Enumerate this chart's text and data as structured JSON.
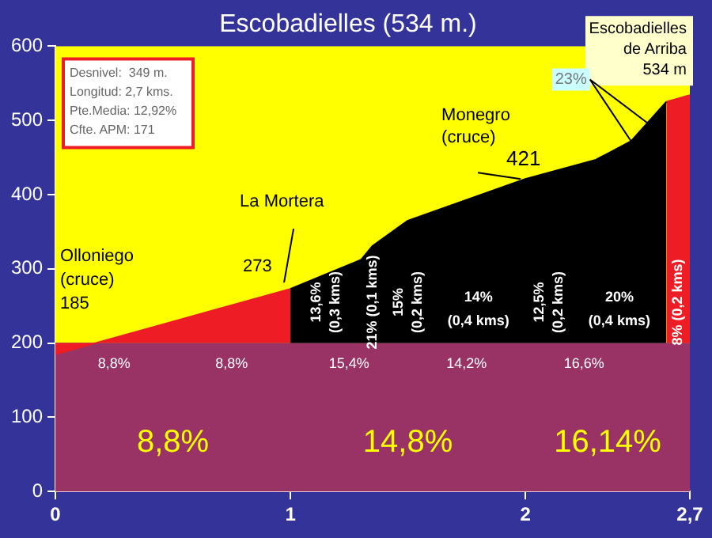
{
  "chart_data": {
    "type": "area",
    "title": "Escobadielles (534 m.)",
    "series": [
      {
        "color": "#ee1c24",
        "x": [
          0,
          0.5,
          1
        ],
        "values": [
          185,
          229,
          273
        ]
      },
      {
        "color": "#000000",
        "x": [
          1,
          1.3,
          1.35,
          1.5,
          2,
          2.3,
          2.45,
          2.6
        ],
        "values": [
          273,
          312,
          331,
          365,
          421,
          447,
          472,
          525
        ]
      },
      {
        "color": "#ee1c24",
        "x": [
          2.6,
          2.7
        ],
        "values": [
          525,
          534
        ]
      }
    ],
    "xlim": [
      0,
      2.7
    ],
    "xticks": [
      0,
      1,
      2,
      {
        "value": 2.7,
        "label": "2,7"
      }
    ],
    "ylim": [
      0,
      600
    ],
    "yticks": [
      0,
      100,
      200,
      300,
      400,
      500,
      600
    ],
    "bands": [
      {
        "axis": "y",
        "from": 200,
        "to": 600,
        "color": "#ffff00"
      },
      {
        "axis": "y",
        "from": 0,
        "to": 200,
        "color": "#993366"
      }
    ],
    "grid": false,
    "legend": false,
    "annotations": [
      "Desnivel:  349 m.",
      "Longitud: 2,7 kms.",
      "Pte.Media: 12,92%",
      "Cfte. APM: 171",
      {
        "text": "Olloniego\n(cruce)\n185",
        "x": 0,
        "y": 185
      },
      {
        "text": "La Mortera",
        "x": 1,
        "y": 273
      },
      {
        "text": "273",
        "x": 1,
        "y": 273
      },
      {
        "text": "Monegro\n(cruce)",
        "x": 2,
        "y": 421
      },
      {
        "text": "421",
        "x": 2,
        "y": 421
      },
      {
        "text": "Escobadielles\nde Arriba\n534 m",
        "x": 2.7,
        "y": 534
      },
      {
        "text": "23%",
        "x": 2.45,
        "y": 472
      },
      "13,6%\n(0,3 kms)",
      "21% (0,1 kms)",
      "15%\n(0,2 kms)",
      "14%\n(0,4 kms)",
      "12,5%\n(0,2 kms)",
      "20%\n(0,4 kms)",
      "8% (0,2 kms)",
      "8,8%",
      "8,8%",
      "15,4%",
      "14,2%",
      "16,6%",
      "8,8%",
      "14,8%",
      "16,14%"
    ]
  }
}
